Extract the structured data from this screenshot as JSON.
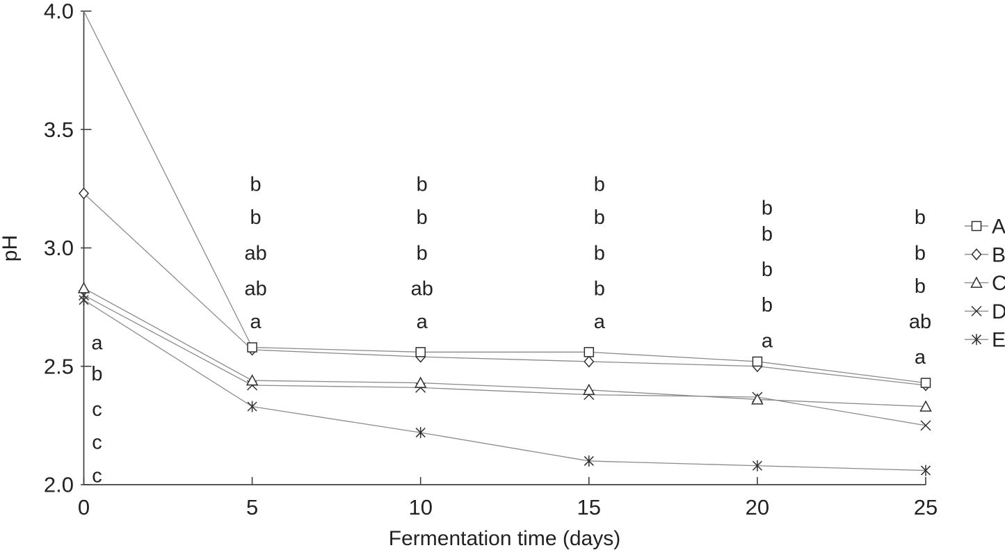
{
  "chart_data": {
    "type": "line",
    "title": "",
    "xlabel": "Fermentation time (days)",
    "ylabel": "pH",
    "xlim": [
      0,
      25
    ],
    "ylim": [
      2.0,
      4.0
    ],
    "grid": false,
    "legend_position": "right",
    "xticks": [
      {
        "value": 0,
        "label": "0"
      },
      {
        "value": 5,
        "label": "5"
      },
      {
        "value": 10,
        "label": "10"
      },
      {
        "value": 15,
        "label": "15"
      },
      {
        "value": 20,
        "label": "20"
      },
      {
        "value": 25,
        "label": "25"
      }
    ],
    "yticks": [
      {
        "value": 2.0,
        "label": "2.0"
      },
      {
        "value": 2.5,
        "label": "2.5"
      },
      {
        "value": 3.0,
        "label": "3.0"
      },
      {
        "value": 3.5,
        "label": "3.5"
      },
      {
        "value": 4.0,
        "label": "4.0"
      }
    ],
    "x": [
      0,
      5,
      10,
      15,
      20,
      25
    ],
    "series": [
      {
        "name": "A",
        "marker": "square",
        "values": [
          4.0,
          2.58,
          2.56,
          2.56,
          2.52,
          2.43
        ],
        "hide_marker_at": [
          0
        ]
      },
      {
        "name": "B",
        "marker": "diamond",
        "values": [
          3.23,
          2.57,
          2.54,
          2.52,
          2.5,
          2.42
        ],
        "hide_marker_at": []
      },
      {
        "name": "C",
        "marker": "triangle",
        "values": [
          2.83,
          2.44,
          2.43,
          2.4,
          2.36,
          2.33
        ],
        "hide_marker_at": []
      },
      {
        "name": "D",
        "marker": "x",
        "values": [
          2.8,
          2.42,
          2.41,
          2.38,
          2.37,
          2.25
        ],
        "hide_marker_at": []
      },
      {
        "name": "E",
        "marker": "asterisk",
        "values": [
          2.78,
          2.33,
          2.22,
          2.1,
          2.08,
          2.06
        ],
        "hide_marker_at": []
      }
    ],
    "significance_letters": [
      {
        "x": 0,
        "dx": 19,
        "entries": [
          {
            "label": "a",
            "ph": 2.6
          },
          {
            "label": "b",
            "ph": 2.47
          },
          {
            "label": "c",
            "ph": 2.32
          },
          {
            "label": "c",
            "ph": 2.18
          },
          {
            "label": "c",
            "ph": 2.04
          }
        ]
      },
      {
        "x": 5,
        "dx": 5,
        "entries": [
          {
            "label": "b",
            "ph": 3.27
          },
          {
            "label": "b",
            "ph": 3.13
          },
          {
            "label": "ab",
            "ph": 2.98
          },
          {
            "label": "ab",
            "ph": 2.83
          },
          {
            "label": "a",
            "ph": 2.69
          }
        ]
      },
      {
        "x": 10,
        "dx": 2,
        "entries": [
          {
            "label": "b",
            "ph": 3.27
          },
          {
            "label": "b",
            "ph": 3.13
          },
          {
            "label": "b",
            "ph": 2.98
          },
          {
            "label": "ab",
            "ph": 2.83
          },
          {
            "label": "a",
            "ph": 2.69
          }
        ]
      },
      {
        "x": 15,
        "dx": 15,
        "entries": [
          {
            "label": "b",
            "ph": 3.27
          },
          {
            "label": "b",
            "ph": 3.13
          },
          {
            "label": "b",
            "ph": 2.98
          },
          {
            "label": "b",
            "ph": 2.83
          },
          {
            "label": "a",
            "ph": 2.69
          }
        ]
      },
      {
        "x": 20,
        "dx": 14,
        "entries": [
          {
            "label": "b",
            "ph": 3.17
          },
          {
            "label": "b",
            "ph": 3.06
          },
          {
            "label": "b",
            "ph": 2.91
          },
          {
            "label": "b",
            "ph": 2.76
          },
          {
            "label": "a",
            "ph": 2.61
          }
        ]
      },
      {
        "x": 25,
        "dx": -8,
        "entries": [
          {
            "label": "b",
            "ph": 3.13
          },
          {
            "label": "b",
            "ph": 2.98
          },
          {
            "label": "b",
            "ph": 2.84
          },
          {
            "label": "ab",
            "ph": 2.69
          },
          {
            "label": "a",
            "ph": 2.54
          }
        ]
      }
    ],
    "legend": {
      "items": [
        {
          "label": "A",
          "marker": "square"
        },
        {
          "label": "B",
          "marker": "diamond"
        },
        {
          "label": "C",
          "marker": "triangle"
        },
        {
          "label": "D",
          "marker": "x"
        },
        {
          "label": "E",
          "marker": "asterisk"
        }
      ]
    },
    "colors": {
      "line": "#8a8a8a",
      "marker": "#2e2e2e",
      "marker_fill": "#ffffff",
      "axis": "#404040",
      "text": "#222222",
      "background": "#ffffff"
    }
  }
}
